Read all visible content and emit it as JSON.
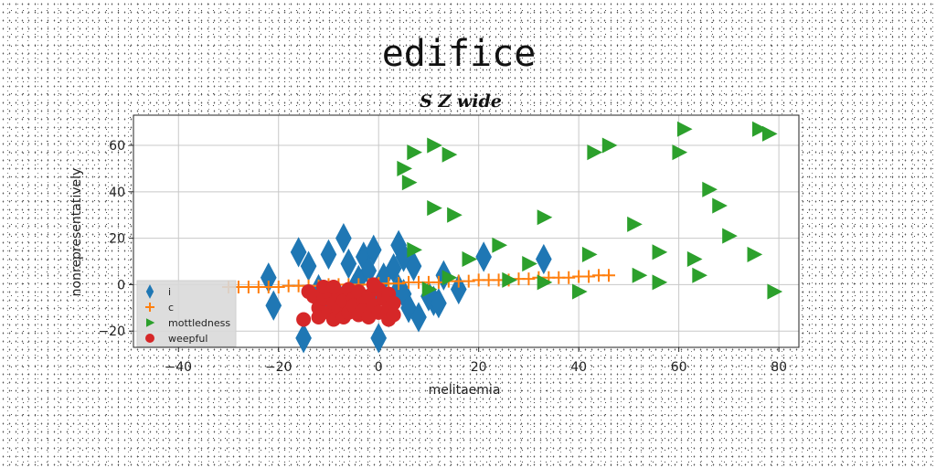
{
  "chart_data": {
    "type": "scatter",
    "title": "edifice",
    "subtitle": "S Z wide",
    "xlabel": "melitaemia",
    "ylabel": "nonrepresentatively",
    "xlim": [
      -49,
      84
    ],
    "ylim": [
      -27,
      73
    ],
    "xticks": [
      -40,
      -20,
      0,
      20,
      40,
      60,
      80
    ],
    "yticks": [
      -20,
      0,
      20,
      40,
      60
    ],
    "grid": true,
    "legend_position": "lower-left",
    "series": [
      {
        "name": "i",
        "marker": "diamond",
        "color": "#1f77b4",
        "points": [
          [
            -22,
            3
          ],
          [
            -21,
            -9
          ],
          [
            -16,
            14
          ],
          [
            -15,
            -23
          ],
          [
            -14,
            8
          ],
          [
            -12,
            -2
          ],
          [
            -11,
            -8
          ],
          [
            -10,
            13
          ],
          [
            -8,
            -5
          ],
          [
            -7,
            20
          ],
          [
            -6,
            9
          ],
          [
            -5,
            -2
          ],
          [
            -4,
            2
          ],
          [
            -3,
            12
          ],
          [
            -2,
            6
          ],
          [
            -2,
            -7
          ],
          [
            -1,
            15
          ],
          [
            0,
            -4
          ],
          [
            0,
            -23
          ],
          [
            1,
            3
          ],
          [
            2,
            -12
          ],
          [
            3,
            7
          ],
          [
            4,
            17
          ],
          [
            4,
            -2
          ],
          [
            5,
            -4
          ],
          [
            5,
            12
          ],
          [
            6,
            -10
          ],
          [
            7,
            8
          ],
          [
            8,
            -14
          ],
          [
            10,
            -5
          ],
          [
            11,
            -7
          ],
          [
            12,
            -8
          ],
          [
            13,
            4
          ],
          [
            16,
            -2
          ],
          [
            21,
            12
          ],
          [
            33,
            11
          ]
        ]
      },
      {
        "name": "c",
        "marker": "plus",
        "color": "#ff7f0e",
        "points": [
          [
            -30,
            -1
          ],
          [
            -28,
            -1
          ],
          [
            -26,
            -1
          ],
          [
            -24,
            -1
          ],
          [
            -22,
            -1
          ],
          [
            -20,
            -1
          ],
          [
            -18,
            -0.5
          ],
          [
            -16,
            -0.5
          ],
          [
            -14,
            -0.5
          ],
          [
            -12,
            -0.5
          ],
          [
            -10,
            0
          ],
          [
            -8,
            0
          ],
          [
            -6,
            0
          ],
          [
            -4,
            0
          ],
          [
            -2,
            0
          ],
          [
            0,
            0.5
          ],
          [
            2,
            0.5
          ],
          [
            4,
            0.5
          ],
          [
            6,
            1
          ],
          [
            8,
            1
          ],
          [
            10,
            1
          ],
          [
            12,
            1
          ],
          [
            14,
            1.5
          ],
          [
            16,
            1.5
          ],
          [
            18,
            1.5
          ],
          [
            20,
            2
          ],
          [
            22,
            2
          ],
          [
            24,
            2
          ],
          [
            26,
            2
          ],
          [
            28,
            2.5
          ],
          [
            30,
            2.5
          ],
          [
            32,
            3
          ],
          [
            34,
            3
          ],
          [
            36,
            3
          ],
          [
            38,
            3
          ],
          [
            40,
            3.5
          ],
          [
            42,
            3.5
          ],
          [
            44,
            4
          ],
          [
            46,
            4
          ]
        ]
      },
      {
        "name": "mottledness",
        "marker": "triangle-right",
        "color": "#2ca02c",
        "points": [
          [
            5,
            50
          ],
          [
            6,
            44
          ],
          [
            7,
            57
          ],
          [
            11,
            60
          ],
          [
            14,
            56
          ],
          [
            11,
            33
          ],
          [
            15,
            30
          ],
          [
            7,
            15
          ],
          [
            10,
            -2
          ],
          [
            14,
            3
          ],
          [
            18,
            11
          ],
          [
            24,
            17
          ],
          [
            26,
            2
          ],
          [
            30,
            9
          ],
          [
            33,
            29
          ],
          [
            33,
            1
          ],
          [
            40,
            -3
          ],
          [
            42,
            13
          ],
          [
            43,
            57
          ],
          [
            46,
            60
          ],
          [
            51,
            26
          ],
          [
            52,
            4
          ],
          [
            56,
            14
          ],
          [
            56,
            1
          ],
          [
            60,
            57
          ],
          [
            61,
            67
          ],
          [
            63,
            11
          ],
          [
            64,
            4
          ],
          [
            66,
            41
          ],
          [
            68,
            34
          ],
          [
            70,
            21
          ],
          [
            75,
            13
          ],
          [
            76,
            67
          ],
          [
            78,
            65
          ],
          [
            79,
            -3
          ]
        ]
      },
      {
        "name": "weepful",
        "marker": "circle",
        "color": "#d62728",
        "points": [
          [
            -15,
            -15
          ],
          [
            -14,
            -3
          ],
          [
            -13,
            -5
          ],
          [
            -12,
            -10
          ],
          [
            -12,
            -14
          ],
          [
            -11,
            -6
          ],
          [
            -10,
            -3
          ],
          [
            -10,
            -12
          ],
          [
            -9,
            -8
          ],
          [
            -9,
            -15
          ],
          [
            -8,
            -4
          ],
          [
            -8,
            -10
          ],
          [
            -7,
            -7
          ],
          [
            -7,
            -14
          ],
          [
            -6,
            -2
          ],
          [
            -6,
            -12
          ],
          [
            -5,
            -6
          ],
          [
            -5,
            -9
          ],
          [
            -4,
            -13
          ],
          [
            -4,
            -3
          ],
          [
            -3,
            -8
          ],
          [
            -3,
            -11
          ],
          [
            -2,
            -5
          ],
          [
            -2,
            -14
          ],
          [
            -1,
            -9
          ],
          [
            0,
            -2
          ],
          [
            0,
            -12
          ],
          [
            1,
            -6
          ],
          [
            2,
            -4
          ],
          [
            2,
            -10
          ],
          [
            2,
            -15
          ],
          [
            3,
            -8
          ],
          [
            3,
            -13
          ],
          [
            -11,
            -1
          ],
          [
            -9,
            -1
          ],
          [
            -1,
            0
          ]
        ]
      }
    ]
  }
}
